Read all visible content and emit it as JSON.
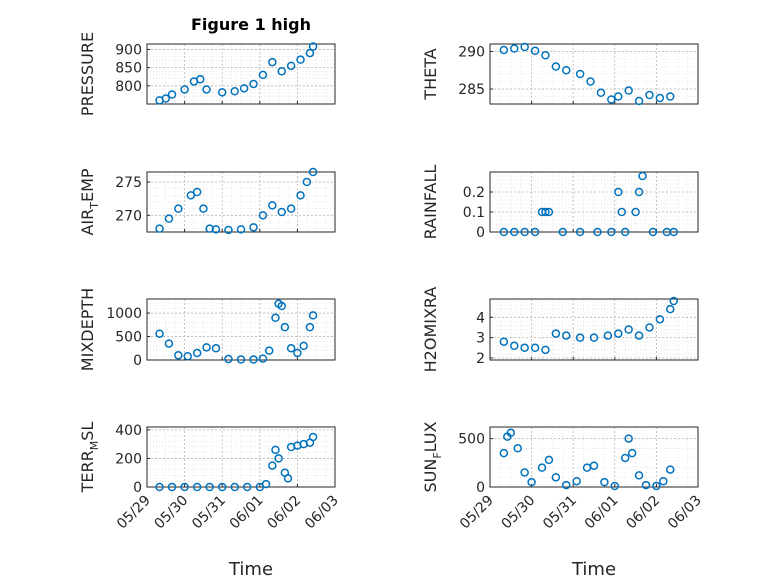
{
  "figure_title": "Figure 1 high",
  "chart_data": [
    {
      "type": "scatter",
      "ylabel": "PRESSURE",
      "title": "Figure 1 high",
      "yticks": [
        "800",
        "850",
        "900"
      ],
      "ylim": [
        750,
        915
      ],
      "xlim": [
        "05/29",
        "06/03"
      ],
      "x": [
        "05/29 08:00",
        "05/29 12:00",
        "05/29 16:00",
        "05/30 00:00",
        "05/30 06:00",
        "05/30 10:00",
        "05/30 14:00",
        "05/31 00:00",
        "05/31 08:00",
        "05/31 14:00",
        "05/31 20:00",
        "06/01 02:00",
        "06/01 08:00",
        "06/01 14:00",
        "06/01 20:00",
        "06/02 02:00",
        "06/02 08:00",
        "06/02 10:00"
      ],
      "y": [
        760,
        765,
        776,
        790,
        812,
        818,
        790,
        782,
        785,
        793,
        805,
        830,
        865,
        840,
        855,
        872,
        890,
        908
      ]
    },
    {
      "type": "scatter",
      "ylabel": "THETA",
      "yticks": [
        "285",
        "290"
      ],
      "ylim": [
        283,
        291
      ],
      "xlim": [
        "05/29",
        "06/03"
      ],
      "x": [
        "05/29 08:00",
        "05/29 14:00",
        "05/29 20:00",
        "05/30 02:00",
        "05/30 08:00",
        "05/30 14:00",
        "05/30 20:00",
        "05/31 04:00",
        "05/31 10:00",
        "05/31 16:00",
        "05/31 22:00",
        "06/01 02:00",
        "06/01 08:00",
        "06/01 14:00",
        "06/01 20:00",
        "06/02 02:00",
        "06/02 08:00"
      ],
      "y": [
        290.2,
        290.4,
        290.6,
        290.1,
        289.5,
        288.0,
        287.5,
        287.0,
        286.0,
        284.5,
        283.6,
        284.0,
        284.8,
        283.4,
        284.2,
        283.8,
        284.0
      ]
    },
    {
      "type": "scatter",
      "ylabel": "AIR_TEMP",
      "ylabel_main": "AIR",
      "ylabel_sub": "T",
      "ylabel_rest": "EMP",
      "yticks": [
        "270",
        "275"
      ],
      "ylim": [
        267.5,
        276.5
      ],
      "xlim": [
        "05/29",
        "06/03"
      ],
      "x": [
        "05/29 08:00",
        "05/29 14:00",
        "05/29 20:00",
        "05/30 04:00",
        "05/30 08:00",
        "05/30 12:00",
        "05/30 16:00",
        "05/30 20:00",
        "05/31 04:00",
        "05/31 12:00",
        "05/31 20:00",
        "06/01 02:00",
        "06/01 08:00",
        "06/01 14:00",
        "06/01 20:00",
        "06/02 02:00",
        "06/02 06:00",
        "06/02 10:00"
      ],
      "y": [
        268.0,
        269.5,
        271.0,
        273.0,
        273.5,
        271.0,
        268.0,
        267.9,
        267.8,
        267.9,
        268.2,
        270.0,
        271.5,
        270.5,
        271.0,
        273.0,
        275.0,
        276.5
      ]
    },
    {
      "type": "scatter",
      "ylabel": "RAINFALL",
      "yticks": [
        "0",
        "0.1",
        "0.2"
      ],
      "ylim": [
        0,
        0.3
      ],
      "xlim": [
        "05/29",
        "06/03"
      ],
      "x": [
        "05/29 08:00",
        "05/29 14:00",
        "05/29 20:00",
        "05/30 02:00",
        "05/30 06:00",
        "05/30 08:00",
        "05/30 10:00",
        "05/30 18:00",
        "05/31 04:00",
        "05/31 14:00",
        "05/31 22:00",
        "06/01 02:00",
        "06/01 04:00",
        "06/01 06:00",
        "06/01 12:00",
        "06/01 14:00",
        "06/01 16:00",
        "06/01 22:00",
        "06/02 06:00",
        "06/02 10:00"
      ],
      "y": [
        0,
        0,
        0,
        0,
        0.1,
        0.1,
        0.1,
        0,
        0,
        0,
        0,
        0.2,
        0.1,
        0,
        0.1,
        0.2,
        0.28,
        0,
        0,
        0
      ]
    },
    {
      "type": "scatter",
      "ylabel": "MIXDEPTH",
      "yticks": [
        "0",
        "500",
        "1000"
      ],
      "ylim": [
        0,
        1300
      ],
      "xlim": [
        "05/29",
        "06/03"
      ],
      "x": [
        "05/29 08:00",
        "05/29 14:00",
        "05/29 20:00",
        "05/30 02:00",
        "05/30 08:00",
        "05/30 14:00",
        "05/30 20:00",
        "05/31 04:00",
        "05/31 12:00",
        "05/31 20:00",
        "06/01 02:00",
        "06/01 06:00",
        "06/01 10:00",
        "06/01 12:00",
        "06/01 14:00",
        "06/01 16:00",
        "06/01 20:00",
        "06/02 00:00",
        "06/02 04:00",
        "06/02 08:00",
        "06/02 10:00"
      ],
      "y": [
        560,
        350,
        100,
        80,
        150,
        270,
        250,
        20,
        10,
        10,
        30,
        200,
        900,
        1200,
        1150,
        700,
        250,
        150,
        300,
        700,
        950
      ]
    },
    {
      "type": "scatter",
      "ylabel": "H2OMIXRA",
      "yticks": [
        "2",
        "3",
        "4"
      ],
      "ylim": [
        1.9,
        4.9
      ],
      "xlim": [
        "05/29",
        "06/03"
      ],
      "x": [
        "05/29 08:00",
        "05/29 14:00",
        "05/29 20:00",
        "05/30 02:00",
        "05/30 08:00",
        "05/30 14:00",
        "05/30 20:00",
        "05/31 04:00",
        "05/31 12:00",
        "05/31 20:00",
        "06/01 02:00",
        "06/01 08:00",
        "06/01 14:00",
        "06/01 20:00",
        "06/02 02:00",
        "06/02 08:00",
        "06/02 10:00"
      ],
      "y": [
        2.8,
        2.6,
        2.5,
        2.5,
        2.4,
        3.2,
        3.1,
        3.0,
        3.0,
        3.1,
        3.2,
        3.4,
        3.1,
        3.5,
        3.9,
        4.4,
        4.8
      ]
    },
    {
      "type": "scatter",
      "ylabel": "TERR_MSL",
      "ylabel_main": "TERR",
      "ylabel_sub": "M",
      "ylabel_rest": "SL",
      "yticks": [
        "0",
        "200",
        "400"
      ],
      "ylim": [
        0,
        420
      ],
      "xlim": [
        "05/29",
        "06/03"
      ],
      "x": [
        "05/29 08:00",
        "05/29 16:00",
        "05/30 00:00",
        "05/30 08:00",
        "05/30 16:00",
        "05/31 00:00",
        "05/31 08:00",
        "05/31 16:00",
        "06/01 00:00",
        "06/01 04:00",
        "06/01 08:00",
        "06/01 10:00",
        "06/01 12:00",
        "06/01 16:00",
        "06/01 18:00",
        "06/01 20:00",
        "06/02 00:00",
        "06/02 04:00",
        "06/02 08:00",
        "06/02 10:00"
      ],
      "y": [
        0,
        0,
        0,
        0,
        0,
        0,
        0,
        0,
        0,
        20,
        150,
        260,
        200,
        100,
        60,
        280,
        290,
        300,
        310,
        350
      ]
    },
    {
      "type": "scatter",
      "ylabel": "SUN_FLUX",
      "ylabel_main": "SUN",
      "ylabel_sub": "F",
      "ylabel_rest": "LUX",
      "yticks": [
        "0",
        "500"
      ],
      "ylim": [
        0,
        620
      ],
      "xlim": [
        "05/29",
        "06/03"
      ],
      "x": [
        "05/29 08:00",
        "05/29 10:00",
        "05/29 12:00",
        "05/29 16:00",
        "05/29 20:00",
        "05/30 00:00",
        "05/30 06:00",
        "05/30 10:00",
        "05/30 14:00",
        "05/30 20:00",
        "05/31 02:00",
        "05/31 08:00",
        "05/31 12:00",
        "05/31 18:00",
        "06/01 00:00",
        "06/01 06:00",
        "06/01 08:00",
        "06/01 10:00",
        "06/01 14:00",
        "06/01 18:00",
        "06/02 00:00",
        "06/02 04:00",
        "06/02 08:00"
      ],
      "y": [
        350,
        520,
        560,
        400,
        150,
        50,
        200,
        280,
        100,
        20,
        60,
        200,
        220,
        50,
        10,
        300,
        500,
        350,
        120,
        20,
        10,
        60,
        180
      ]
    }
  ],
  "xticks": [
    "05/29",
    "05/30",
    "05/31",
    "06/01",
    "06/02",
    "06/03"
  ],
  "xlabel": "Time",
  "marker_color": "#0072bd"
}
